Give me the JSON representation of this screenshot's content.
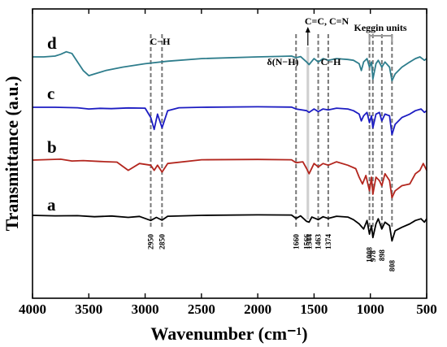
{
  "chart_data": {
    "type": "line",
    "xlabel": "Wavenumber (cm⁻¹)",
    "ylabel": "Transmittance (a.u.)",
    "xlim": [
      4000,
      500
    ],
    "x_reversed": true,
    "x_ticks": [
      4000,
      3500,
      3000,
      2500,
      2000,
      1500,
      1000,
      500
    ],
    "y_ticks_shown": false,
    "grid": false,
    "series": [
      {
        "name": "a",
        "color": "#000000",
        "points": [
          [
            4000,
            0
          ],
          [
            3800,
            -0.3
          ],
          [
            3600,
            -0.2
          ],
          [
            3450,
            -0.8
          ],
          [
            3300,
            -0.4
          ],
          [
            3150,
            -1.2
          ],
          [
            3050,
            -0.6
          ],
          [
            2950,
            -3
          ],
          [
            2900,
            -1.2
          ],
          [
            2850,
            -2.8
          ],
          [
            2800,
            -0.5
          ],
          [
            2500,
            0
          ],
          [
            2000,
            0.3
          ],
          [
            1700,
            0.2
          ],
          [
            1660,
            -1.8
          ],
          [
            1620,
            -0.3
          ],
          [
            1566,
            -3.5
          ],
          [
            1544,
            -4
          ],
          [
            1520,
            -1
          ],
          [
            1463,
            -2.5
          ],
          [
            1420,
            -0.8
          ],
          [
            1374,
            -1.8
          ],
          [
            1300,
            -0.5
          ],
          [
            1200,
            -1
          ],
          [
            1150,
            -2.5
          ],
          [
            1100,
            -5
          ],
          [
            1060,
            -8
          ],
          [
            1030,
            -3
          ],
          [
            1008,
            -11
          ],
          [
            990,
            -6
          ],
          [
            978,
            -13
          ],
          [
            950,
            -5
          ],
          [
            930,
            -2
          ],
          [
            898,
            -8
          ],
          [
            870,
            -4
          ],
          [
            830,
            -6
          ],
          [
            808,
            -15
          ],
          [
            780,
            -9
          ],
          [
            720,
            -7
          ],
          [
            650,
            -5
          ],
          [
            600,
            -3
          ],
          [
            550,
            -2
          ],
          [
            520,
            -4
          ],
          [
            500,
            -2
          ]
        ]
      },
      {
        "name": "b",
        "color": "#b3261e",
        "points": [
          [
            4000,
            0
          ],
          [
            3750,
            0.5
          ],
          [
            3650,
            -0.5
          ],
          [
            3550,
            -0.3
          ],
          [
            3400,
            -0.8
          ],
          [
            3250,
            -1.2
          ],
          [
            3150,
            -6
          ],
          [
            3050,
            -2
          ],
          [
            2950,
            -3
          ],
          [
            2920,
            -6
          ],
          [
            2890,
            -3
          ],
          [
            2850,
            -7
          ],
          [
            2800,
            -2
          ],
          [
            2500,
            0.2
          ],
          [
            2000,
            0.4
          ],
          [
            1700,
            0.2
          ],
          [
            1660,
            -1.5
          ],
          [
            1600,
            -1
          ],
          [
            1566,
            -5
          ],
          [
            1544,
            -8
          ],
          [
            1500,
            -2
          ],
          [
            1463,
            -4
          ],
          [
            1420,
            -2
          ],
          [
            1374,
            -3
          ],
          [
            1300,
            -1
          ],
          [
            1200,
            -3
          ],
          [
            1130,
            -5
          ],
          [
            1100,
            -10
          ],
          [
            1070,
            -14
          ],
          [
            1040,
            -9
          ],
          [
            1008,
            -18
          ],
          [
            990,
            -10
          ],
          [
            978,
            -20
          ],
          [
            950,
            -10
          ],
          [
            920,
            -12
          ],
          [
            898,
            -15
          ],
          [
            870,
            -8
          ],
          [
            830,
            -12
          ],
          [
            808,
            -22
          ],
          [
            780,
            -18
          ],
          [
            720,
            -15
          ],
          [
            650,
            -14
          ],
          [
            600,
            -8
          ],
          [
            560,
            -6
          ],
          [
            530,
            -2
          ],
          [
            500,
            -6
          ]
        ]
      },
      {
        "name": "c",
        "color": "#1c1cc2",
        "points": [
          [
            4000,
            0
          ],
          [
            3800,
            0
          ],
          [
            3600,
            -0.3
          ],
          [
            3500,
            -1
          ],
          [
            3400,
            -0.6
          ],
          [
            3300,
            -0.8
          ],
          [
            3150,
            -0.4
          ],
          [
            3000,
            -0.5
          ],
          [
            2950,
            -6
          ],
          [
            2920,
            -13
          ],
          [
            2890,
            -4
          ],
          [
            2850,
            -12
          ],
          [
            2800,
            -2
          ],
          [
            2700,
            -0.3
          ],
          [
            2500,
            0
          ],
          [
            2000,
            0.3
          ],
          [
            1700,
            0.1
          ],
          [
            1660,
            -1
          ],
          [
            1566,
            -2
          ],
          [
            1544,
            -3
          ],
          [
            1500,
            -1
          ],
          [
            1463,
            -2.5
          ],
          [
            1420,
            -1
          ],
          [
            1374,
            -1.5
          ],
          [
            1300,
            -0.5
          ],
          [
            1200,
            -1
          ],
          [
            1150,
            -2
          ],
          [
            1100,
            -4
          ],
          [
            1080,
            -8
          ],
          [
            1060,
            -5
          ],
          [
            1030,
            -3
          ],
          [
            1008,
            -9
          ],
          [
            990,
            -5
          ],
          [
            978,
            -12
          ],
          [
            950,
            -4
          ],
          [
            920,
            -3
          ],
          [
            898,
            -8
          ],
          [
            870,
            -4
          ],
          [
            830,
            -5
          ],
          [
            808,
            -16
          ],
          [
            780,
            -10
          ],
          [
            720,
            -6
          ],
          [
            650,
            -4
          ],
          [
            600,
            -2
          ],
          [
            550,
            -1
          ],
          [
            520,
            -3
          ],
          [
            500,
            -2
          ]
        ]
      },
      {
        "name": "d",
        "color": "#2e7d8c",
        "points": [
          [
            4000,
            0
          ],
          [
            3900,
            0
          ],
          [
            3800,
            0.5
          ],
          [
            3750,
            1.5
          ],
          [
            3700,
            3
          ],
          [
            3650,
            2
          ],
          [
            3600,
            -3
          ],
          [
            3550,
            -8
          ],
          [
            3500,
            -11
          ],
          [
            3450,
            -10
          ],
          [
            3350,
            -8
          ],
          [
            3200,
            -6
          ],
          [
            3000,
            -4
          ],
          [
            2800,
            -2.5
          ],
          [
            2500,
            -1
          ],
          [
            2000,
            0
          ],
          [
            1800,
            0.3
          ],
          [
            1700,
            0.5
          ],
          [
            1660,
            -0.5
          ],
          [
            1620,
            0.2
          ],
          [
            1566,
            -3
          ],
          [
            1544,
            -4.5
          ],
          [
            1500,
            -1
          ],
          [
            1463,
            -3
          ],
          [
            1420,
            -1
          ],
          [
            1374,
            -2
          ],
          [
            1300,
            -1
          ],
          [
            1200,
            -1.5
          ],
          [
            1150,
            -2
          ],
          [
            1100,
            -4
          ],
          [
            1080,
            -8
          ],
          [
            1060,
            -3
          ],
          [
            1030,
            -1
          ],
          [
            1008,
            -6
          ],
          [
            990,
            -3
          ],
          [
            978,
            -13
          ],
          [
            950,
            -4
          ],
          [
            930,
            -2
          ],
          [
            898,
            -6
          ],
          [
            870,
            -3
          ],
          [
            830,
            -6
          ],
          [
            808,
            -14
          ],
          [
            780,
            -10
          ],
          [
            720,
            -6
          ],
          [
            650,
            -3
          ],
          [
            600,
            -1
          ],
          [
            560,
            0
          ],
          [
            520,
            -2
          ],
          [
            500,
            -1
          ]
        ]
      }
    ],
    "series_order_bottom_to_top": [
      "a",
      "b",
      "c",
      "d"
    ],
    "reference_lines": [
      2950,
      2850,
      1660,
      1463,
      1374,
      1008,
      978,
      898,
      808
    ],
    "shaded_band": [
      1566,
      1544
    ],
    "peak_labels": [
      "2950",
      "2850",
      "1660",
      "1566",
      "1544",
      "1463",
      "1374",
      "1008",
      "978",
      "898",
      "808"
    ],
    "annotations": [
      {
        "text": "C−H",
        "group": "2950-2850"
      },
      {
        "text": "δ(N−H)",
        "group": "1660"
      },
      {
        "text": "C=C, C=N",
        "group": "1566-1544"
      },
      {
        "text": "C−H",
        "group": "1463-1374"
      },
      {
        "text": "Keggin units",
        "group": "1008-808"
      }
    ]
  }
}
